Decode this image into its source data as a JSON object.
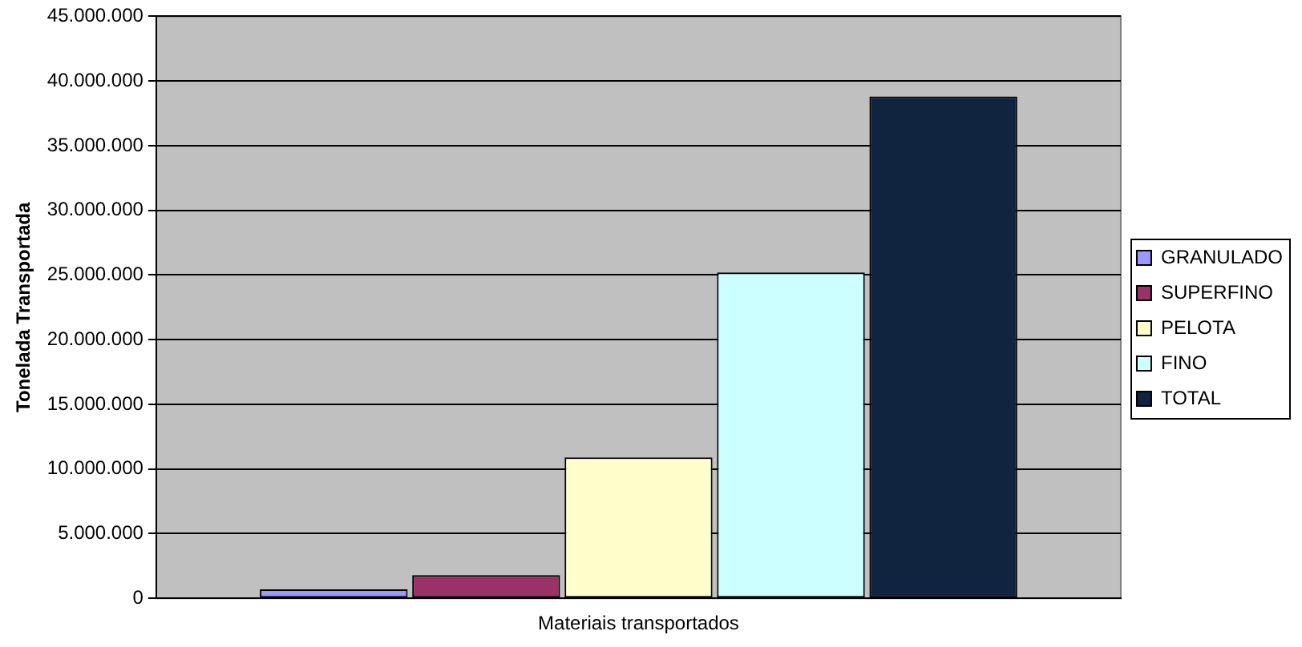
{
  "chart_data": {
    "type": "bar",
    "ylabel": "Tonelada Transportada",
    "categories": [
      "Materiais transportados"
    ],
    "series": [
      {
        "name": "GRANULADO",
        "color": "#9999ff",
        "values": [
          700000
        ]
      },
      {
        "name": "SUPERFINO",
        "color": "#993366",
        "values": [
          1800000
        ]
      },
      {
        "name": "PELOTA",
        "color": "#ffffcc",
        "values": [
          10900000
        ]
      },
      {
        "name": "FINO",
        "color": "#ccffff",
        "values": [
          25200000
        ]
      },
      {
        "name": "TOTAL",
        "color": "#10233f",
        "values": [
          38800000
        ]
      }
    ],
    "ylim": [
      0,
      45000000
    ],
    "yticks": [
      {
        "value": 0,
        "label": "0"
      },
      {
        "value": 5000000,
        "label": "5.000.000"
      },
      {
        "value": 10000000,
        "label": "10.000.000"
      },
      {
        "value": 15000000,
        "label": "15.000.000"
      },
      {
        "value": 20000000,
        "label": "20.000.000"
      },
      {
        "value": 25000000,
        "label": "25.000.000"
      },
      {
        "value": 30000000,
        "label": "30.000.000"
      },
      {
        "value": 35000000,
        "label": "35.000.000"
      },
      {
        "value": 40000000,
        "label": "40.000.000"
      },
      {
        "value": 45000000,
        "label": "45.000.000"
      }
    ],
    "grid": "y",
    "legend": "right"
  }
}
